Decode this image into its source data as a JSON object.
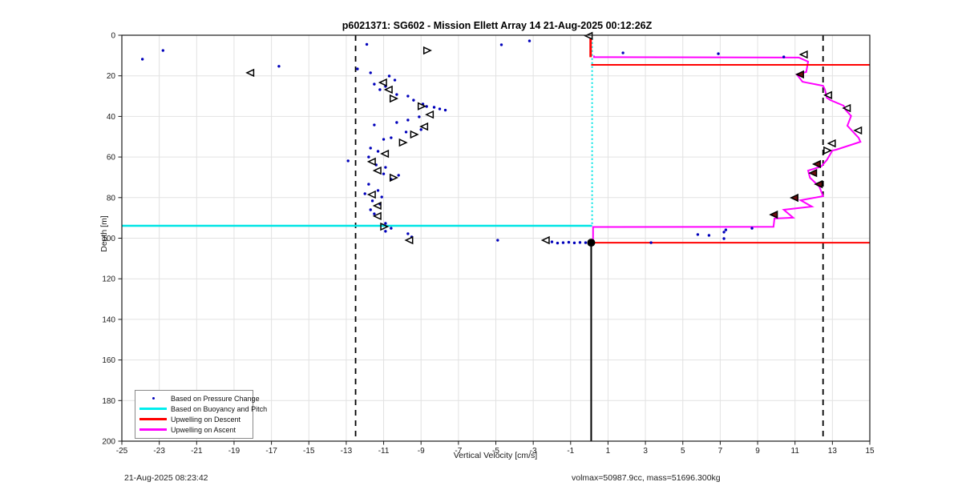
{
  "footer": {
    "timestamp": "21-Aug-2025 08:23:42",
    "volmax": "volmax=50987.9cc, mass=51696.300kg"
  },
  "chart_data": {
    "type": "scatter",
    "title": "p6021371: SG602 - Mission Ellett Array 14 21-Aug-2025 00:12:26Z",
    "xlabel": "Vertical Velocity [cm/s]",
    "ylabel": "Depth [m]",
    "xlim": [
      -25,
      15
    ],
    "ylim": [
      0,
      200
    ],
    "y_inverted": true,
    "grid": true,
    "x_ticks": [
      -25,
      -23,
      -21,
      -19,
      -17,
      -15,
      -13,
      -11,
      -9,
      -7,
      -5,
      -3,
      -1,
      1,
      3,
      5,
      7,
      9,
      11,
      13,
      15
    ],
    "y_ticks": [
      0,
      20,
      40,
      60,
      80,
      100,
      120,
      140,
      160,
      180,
      200
    ],
    "legend_position": "bottom-left",
    "legend": [
      {
        "label": "Based on Pressure Change",
        "marker": "dot",
        "color": "#0000bb"
      },
      {
        "label": "Based on Buoyancy and Pitch",
        "marker": "line",
        "color": "#00eeee"
      },
      {
        "label": "Upwelling on Descent",
        "marker": "line",
        "color": "#ff0000"
      },
      {
        "label": "Upwelling on Ascent",
        "marker": "line",
        "color": "#ff00ff"
      }
    ],
    "colors": {
      "pressure_dots": "#0000bb",
      "buoyancy": "#00e5e5",
      "descent": "#ff0000",
      "ascent": "#ff00ff",
      "guides": "#000000",
      "grid": "#e2e2e2",
      "triangle_edge": "#000000",
      "triangle_fill_dark": "#6b0f0f"
    },
    "guides": {
      "dashed_x": [
        -12.5,
        12.5
      ],
      "solid_zero_line": {
        "x": 0.1,
        "depth_range": [
          102.2,
          200
        ]
      }
    },
    "series": {
      "pressure_dots": [
        [
          -23.9,
          11.8
        ],
        [
          -22.8,
          7.5
        ],
        [
          -16.6,
          15.3
        ],
        [
          -11.9,
          4.5
        ],
        [
          -4.7,
          4.7
        ],
        [
          -3.2,
          2.8
        ],
        [
          1.8,
          8.7
        ],
        [
          6.9,
          9.1
        ],
        [
          10.4,
          10.7
        ],
        [
          -12.4,
          16.6
        ],
        [
          -11.7,
          18.5
        ],
        [
          -10.7,
          20.1
        ],
        [
          -10.4,
          22.1
        ],
        [
          -11.5,
          24.1
        ],
        [
          -10.9,
          25.2
        ],
        [
          -11.2,
          26.8
        ],
        [
          -10.3,
          29.2
        ],
        [
          -9.7,
          30.0
        ],
        [
          -9.4,
          32.0
        ],
        [
          -8.9,
          33.9
        ],
        [
          -8.7,
          35.1
        ],
        [
          -8.3,
          35.5
        ],
        [
          -8.0,
          36.3
        ],
        [
          -7.7,
          36.9
        ],
        [
          -9.1,
          40.2
        ],
        [
          -9.7,
          41.8
        ],
        [
          -10.3,
          43.0
        ],
        [
          -11.5,
          44.2
        ],
        [
          -9.0,
          46.5
        ],
        [
          -9.8,
          47.7
        ],
        [
          -10.6,
          50.5
        ],
        [
          -11.0,
          51.3
        ],
        [
          -11.7,
          55.6
        ],
        [
          -11.3,
          57.2
        ],
        [
          -11.8,
          60.0
        ],
        [
          -12.9,
          61.9
        ],
        [
          -11.4,
          63.9
        ],
        [
          -10.9,
          65.1
        ],
        [
          -11.0,
          68.3
        ],
        [
          -10.2,
          69.0
        ],
        [
          -10.6,
          71.0
        ],
        [
          -11.8,
          73.4
        ],
        [
          -11.3,
          76.5
        ],
        [
          -12.0,
          78.1
        ],
        [
          -11.1,
          79.7
        ],
        [
          -11.6,
          81.6
        ],
        [
          -11.2,
          83.2
        ],
        [
          -11.7,
          86.0
        ],
        [
          -11.5,
          88.0
        ],
        [
          -10.9,
          92.7
        ],
        [
          -10.6,
          95.1
        ],
        [
          -10.9,
          96.6
        ],
        [
          -9.7,
          97.8
        ],
        [
          -9.5,
          99.4
        ],
        [
          -4.9,
          101.0
        ],
        [
          -2.0,
          101.8
        ],
        [
          -1.7,
          102.4
        ],
        [
          -1.4,
          102.2
        ],
        [
          -1.1,
          102.0
        ],
        [
          -0.8,
          102.3
        ],
        [
          -0.5,
          102.1
        ],
        [
          -0.2,
          102.2
        ],
        [
          0.2,
          102.2
        ],
        [
          3.3,
          102.2
        ],
        [
          5.8,
          98.2
        ],
        [
          6.4,
          98.6
        ],
        [
          7.2,
          97.0
        ],
        [
          7.3,
          95.9
        ],
        [
          7.2,
          100.2
        ],
        [
          8.7,
          95.1
        ]
      ],
      "triangles_left": [
        [
          0.0,
          0.3
        ],
        [
          -18.1,
          18.5
        ],
        [
          -11.0,
          23.3
        ],
        [
          -10.7,
          26.8
        ],
        [
          -8.5,
          39.1
        ],
        [
          -8.8,
          45.0
        ],
        [
          -10.9,
          58.4
        ],
        [
          -11.6,
          62.3
        ],
        [
          -11.3,
          66.7
        ],
        [
          -11.6,
          78.5
        ],
        [
          -11.3,
          84.0
        ],
        [
          -11.3,
          89.1
        ],
        [
          -9.6,
          101.0
        ],
        [
          -2.3,
          101.0
        ],
        [
          11.5,
          9.5
        ],
        [
          12.8,
          29.5
        ],
        [
          13.8,
          35.9
        ],
        [
          14.4,
          46.9
        ],
        [
          13.0,
          53.3
        ]
      ],
      "triangles_right": [
        [
          -8.7,
          7.5
        ],
        [
          -10.5,
          31.2
        ],
        [
          -9.0,
          35.0
        ],
        [
          -9.4,
          48.9
        ],
        [
          -10.0,
          52.9
        ],
        [
          -10.5,
          70.2
        ],
        [
          -11.0,
          94.3
        ],
        [
          12.7,
          56.8
        ]
      ],
      "triangles_filled": [
        [
          11.3,
          19.3
        ],
        [
          12.2,
          63.5
        ],
        [
          12.0,
          67.9
        ],
        [
          12.3,
          73.4
        ],
        [
          11.0,
          80.1
        ],
        [
          9.9,
          88.4
        ]
      ],
      "bottom_apogee_marker": {
        "x": 0.1,
        "depth": 102.2
      },
      "buoyancy": {
        "vertical_dotted": {
          "x": 0.15,
          "depth_range": [
            1.5,
            93.9
          ]
        },
        "horizontal": {
          "depth": 93.9,
          "x_range": [
            -25,
            0.15
          ]
        }
      },
      "descent": {
        "horizontal_lines": [
          {
            "depth": 14.6,
            "x_range": [
              0.1,
              15
            ]
          },
          {
            "depth": 102.2,
            "x_range": [
              0.1,
              15
            ]
          }
        ],
        "vertical_segment": {
          "x": 0.07,
          "depth_range": [
            1.5,
            10.8
          ]
        }
      },
      "ascent_polyline": [
        [
          0.2,
          102.0
        ],
        [
          0.2,
          94.5
        ],
        [
          9.85,
          94.4
        ],
        [
          9.9,
          90.3
        ],
        [
          10.9,
          89.9
        ],
        [
          10.4,
          86.0
        ],
        [
          11.9,
          84.4
        ],
        [
          11.3,
          81.3
        ],
        [
          12.5,
          79.3
        ],
        [
          12.3,
          74.6
        ],
        [
          11.8,
          70.2
        ],
        [
          11.7,
          66.7
        ],
        [
          12.4,
          64.7
        ],
        [
          12.7,
          61.5
        ],
        [
          13.0,
          56.8
        ],
        [
          13.2,
          56.4
        ],
        [
          14.5,
          52.5
        ],
        [
          14.4,
          50.5
        ],
        [
          13.8,
          44.6
        ],
        [
          14.0,
          39.8
        ],
        [
          13.7,
          36.7
        ],
        [
          13.6,
          34.7
        ],
        [
          12.9,
          32.0
        ],
        [
          12.7,
          30.8
        ],
        [
          12.6,
          26.8
        ],
        [
          12.5,
          24.9
        ],
        [
          11.6,
          23.3
        ],
        [
          11.4,
          22.9
        ],
        [
          11.1,
          19.3
        ],
        [
          11.6,
          18.1
        ],
        [
          11.7,
          13.0
        ],
        [
          11.2,
          11.0
        ],
        [
          0.25,
          10.8
        ],
        [
          0.25,
          10.0
        ]
      ]
    }
  }
}
